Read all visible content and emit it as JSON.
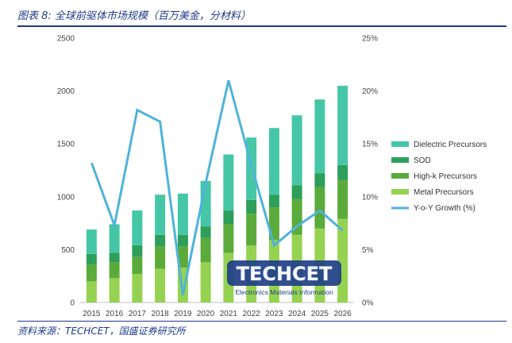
{
  "header": {
    "title": "图表 8:  全球前驱体市场规模（百万美金，分材料）"
  },
  "footer": {
    "source": "资料来源：TECHCET，国盛证券研究所"
  },
  "watermark": {
    "brand": "TECHCET",
    "tagline": "Electronics Materials Information"
  },
  "colors": {
    "dielectric": "#45c7a7",
    "sod": "#2e9e5b",
    "highk": "#5bab3b",
    "metal": "#95d251",
    "yoy": "#4fb3d9"
  },
  "chart_data": {
    "type": "bar",
    "stacked": true,
    "categories": [
      "2015",
      "2016",
      "2017",
      "2018",
      "2019",
      "2020",
      "2021",
      "2022",
      "2023",
      "2024",
      "2025",
      "2026"
    ],
    "series": [
      {
        "name": "Metal Precursors",
        "values": [
          200,
          230,
          270,
          320,
          330,
          380,
          470,
          540,
          590,
          640,
          700,
          790
        ]
      },
      {
        "name": "High-k Precursors",
        "values": [
          160,
          150,
          160,
          210,
          200,
          230,
          270,
          300,
          310,
          340,
          390,
          370
        ]
      },
      {
        "name": "SOD",
        "values": [
          100,
          90,
          110,
          110,
          110,
          110,
          130,
          130,
          120,
          130,
          130,
          140
        ]
      },
      {
        "name": "Dielectric Precursors",
        "values": [
          230,
          270,
          330,
          380,
          390,
          430,
          530,
          590,
          630,
          660,
          700,
          750
        ]
      }
    ],
    "line_series": {
      "name": "Y-o-Y Growth (%)",
      "axis": "right",
      "values": [
        13.2,
        7.3,
        18.2,
        17.1,
        0.7,
        11.3,
        21.0,
        13.0,
        5.4,
        7.2,
        8.7,
        6.8
      ]
    },
    "ylim": [
      0,
      2500
    ],
    "yticks": [
      0,
      500,
      1000,
      1500,
      2000,
      2500
    ],
    "y2lim": [
      0,
      25
    ],
    "y2ticks": [
      "0%",
      "5%",
      "10%",
      "15%",
      "20%",
      "25%"
    ],
    "legend_position": "right",
    "grid": false
  }
}
